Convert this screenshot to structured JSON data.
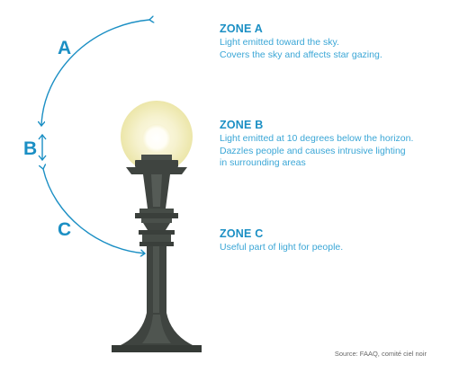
{
  "labels": {
    "a": "A",
    "b": "B",
    "c": "C"
  },
  "zones": [
    {
      "title": "ZONE A",
      "lines": [
        "Light emitted toward the sky.",
        "Covers the sky and affects star gazing."
      ]
    },
    {
      "title": "ZONE B",
      "lines": [
        "Light emitted at 10 degrees below the horizon.",
        "Dazzles people and causes intrusive lighting",
        "in surrounding areas"
      ]
    },
    {
      "title": "ZONE C",
      "lines": [
        "Useful part of light for people."
      ]
    }
  ],
  "source": "Source: FAAQ, comité ciel noir",
  "colors": {
    "accent": "#1b8fc4",
    "text_blue": "#3aa6d6",
    "lamp_dark": "#3f4440",
    "lamp_mid": "#555b56",
    "globe_glow": "#f4f0c4",
    "bulb": "#ffffff"
  }
}
